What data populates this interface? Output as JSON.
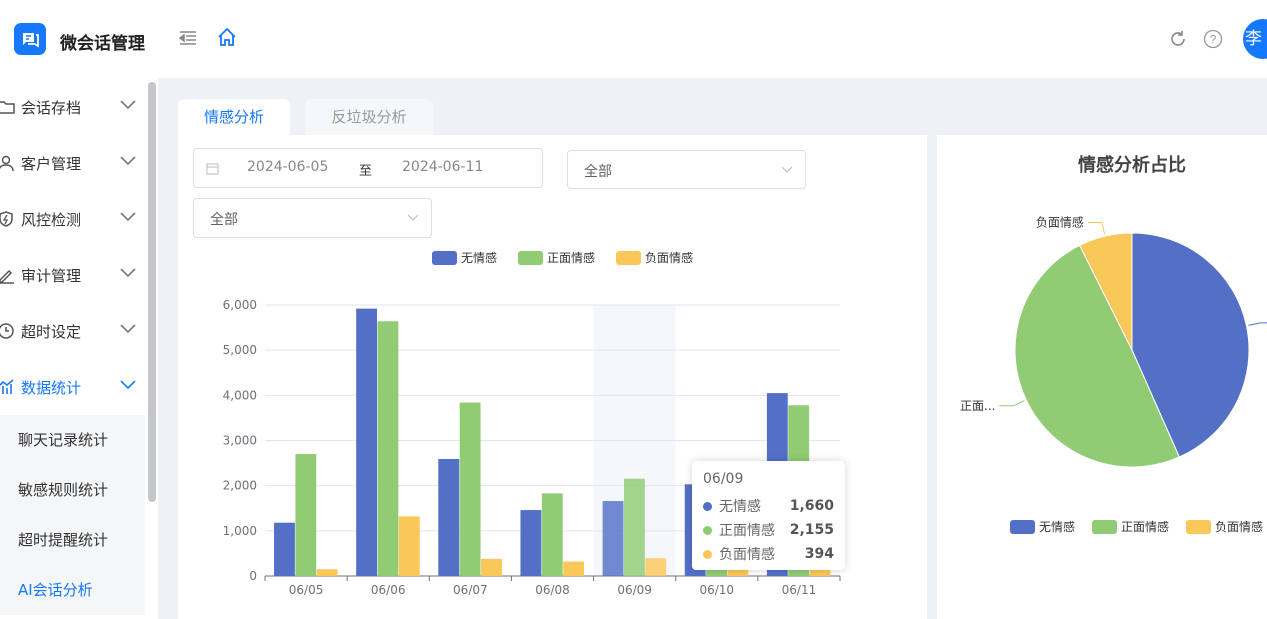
{
  "header": {
    "app_title": "微会话管理",
    "avatar_text": "李",
    "brand_color": "#1677ff"
  },
  "sidebar": {
    "items": [
      {
        "label": "会话存档",
        "icon": "folder-icon"
      },
      {
        "label": "客户管理",
        "icon": "user-icon"
      },
      {
        "label": "风控检测",
        "icon": "shield-icon"
      },
      {
        "label": "审计管理",
        "icon": "edit-icon"
      },
      {
        "label": "超时设定",
        "icon": "clock-icon"
      },
      {
        "label": "数据统计",
        "icon": "chart-icon",
        "active": true
      }
    ],
    "sub_items": [
      {
        "label": "聊天记录统计"
      },
      {
        "label": "敏感规则统计"
      },
      {
        "label": "超时提醒统计"
      },
      {
        "label": "AI会话分析",
        "active": true
      }
    ]
  },
  "tabs": [
    {
      "label": "情感分析",
      "active": true
    },
    {
      "label": "反垃圾分析"
    }
  ],
  "filters": {
    "date_start": "2024-06-05",
    "date_sep": "至",
    "date_end": "2024-06-11",
    "select1": "全部",
    "select2": "全部"
  },
  "tooltip": {
    "title": "06/09",
    "rows": [
      {
        "name": "无情感",
        "value": "1,660"
      },
      {
        "name": "正面情感",
        "value": "2,155"
      },
      {
        "name": "负面情感",
        "value": "394"
      }
    ]
  },
  "chart_data": [
    {
      "type": "bar",
      "categories": [
        "06/05",
        "06/06",
        "06/07",
        "06/08",
        "06/09",
        "06/10",
        "06/11"
      ],
      "series": [
        {
          "name": "无情感",
          "color": "#5470c6",
          "values": [
            1180,
            5920,
            2590,
            1460,
            1660,
            2030,
            4050
          ]
        },
        {
          "name": "正面情感",
          "color": "#91cc75",
          "values": [
            2700,
            5640,
            3840,
            1830,
            2155,
            1500,
            3780
          ]
        },
        {
          "name": "负面情感",
          "color": "#fac858",
          "values": [
            150,
            1320,
            380,
            320,
            394,
            300,
            350
          ]
        }
      ],
      "ylim": [
        0,
        6000
      ],
      "yticks": [
        "0",
        "1,000",
        "2,000",
        "3,000",
        "4,000",
        "5,000",
        "6,000"
      ],
      "grid": true,
      "legend": "top",
      "highlighted_category": "06/09"
    },
    {
      "type": "pie",
      "title": "情感分析占比",
      "slices": [
        {
          "name": "无情感",
          "label": "",
          "color": "#5470c6",
          "value": 18890
        },
        {
          "name": "正面情感",
          "label": "正面...",
          "color": "#91cc75",
          "value": 21445
        },
        {
          "name": "负面情感",
          "label": "负面情感",
          "color": "#fac858",
          "value": 3214
        }
      ],
      "legend": "bottom"
    }
  ]
}
